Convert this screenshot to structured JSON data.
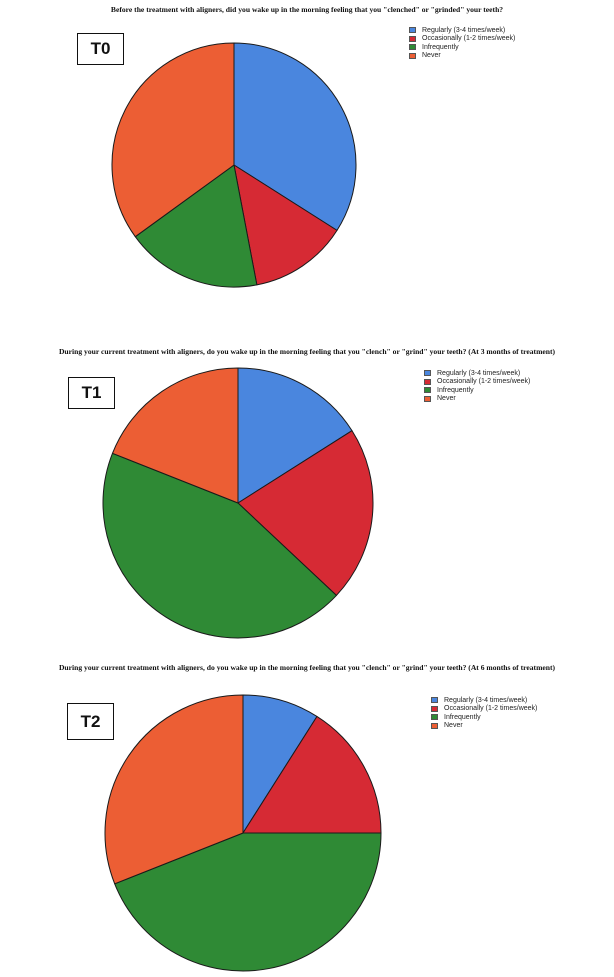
{
  "chart_data": [
    {
      "type": "pie",
      "title": "Before the treatment with aligners, did you wake up in the morning feeling that you \"clenched\" or \"grinded\" your teeth?",
      "label": "T0",
      "categories": [
        "Regularly (3-4 times/week)",
        "Occasionally (1-2 times/week)",
        "Infrequently",
        "Never"
      ],
      "values": [
        34,
        13,
        18,
        35
      ],
      "legend_position": "top-right"
    },
    {
      "type": "pie",
      "title": "During your current treatment with aligners, do you wake up in the morning feeling that you \"clench\" or \"grind\" your teeth? (At 3 months of treatment)",
      "label": "T1",
      "categories": [
        "Regularly (3-4 times/week)",
        "Occasionally (1-2 times/week)",
        "Infrequently",
        "Never"
      ],
      "values": [
        16,
        21,
        44,
        19
      ],
      "legend_position": "top-right"
    },
    {
      "type": "pie",
      "title": "During your current treatment with aligners, do you wake up in the morning feeling that you \"clench\" or \"grind\" your teeth? (At 6 months of treatment)",
      "label": "T2",
      "categories": [
        "Regularly (3-4 times/week)",
        "Occasionally (1-2 times/week)",
        "Infrequently",
        "Never"
      ],
      "values": [
        9,
        16,
        44,
        31
      ],
      "legend_position": "top-right"
    }
  ],
  "colors": [
    "#4a86de",
    "#d62a34",
    "#2f8a35",
    "#ec5e34"
  ]
}
